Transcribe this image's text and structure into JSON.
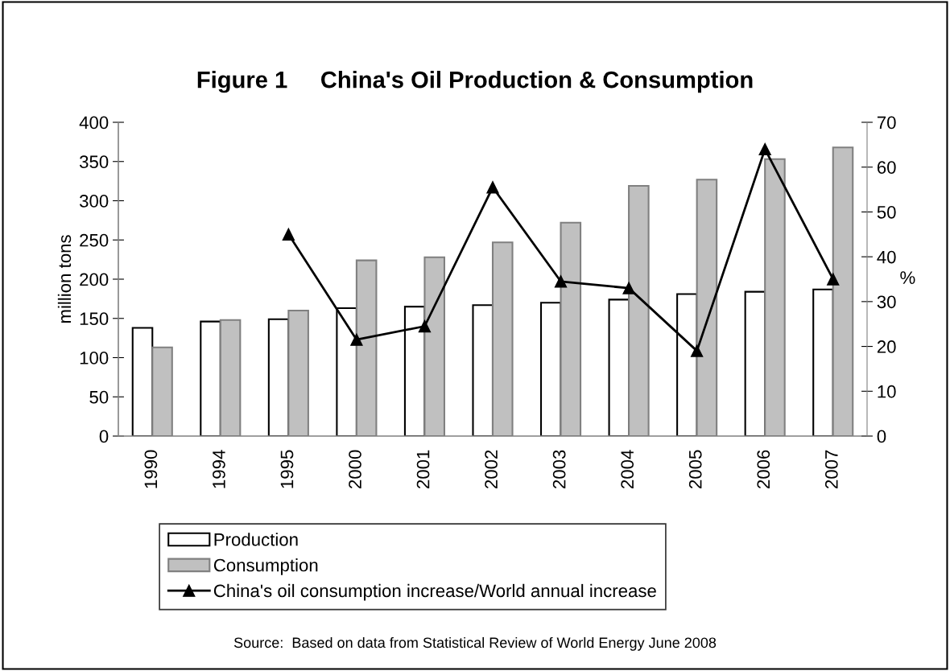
{
  "chart_data": {
    "type": "bar",
    "title": "Figure 1     China's Oil Production & Consumption",
    "ylabel": "million tons",
    "y2label": "%",
    "categories": [
      "1990",
      "1994",
      "1995",
      "2000",
      "2001",
      "2002",
      "2003",
      "2004",
      "2005",
      "2006",
      "2007"
    ],
    "series": [
      {
        "name": "Production",
        "color": "#ffffff",
        "values": [
          138,
          146,
          149,
          163,
          165,
          167,
          170,
          174,
          181,
          184,
          187
        ]
      },
      {
        "name": "Consumption",
        "color": "#c0c0c0",
        "values": [
          113,
          148,
          160,
          224,
          228,
          247,
          272,
          319,
          327,
          353,
          368
        ]
      },
      {
        "name": "China's oil consumption increase/World annual increase",
        "type": "line",
        "axis": "y2",
        "color": "#000000",
        "marker": "triangle",
        "values": [
          null,
          null,
          45,
          21.5,
          24.5,
          55.5,
          34.5,
          33,
          19,
          64,
          35
        ]
      }
    ],
    "ylim": [
      0,
      400
    ],
    "yticks": [
      0,
      50,
      100,
      150,
      200,
      250,
      300,
      350,
      400
    ],
    "y2lim": [
      0,
      70
    ],
    "y2ticks": [
      0,
      10,
      20,
      30,
      40,
      50,
      60,
      70
    ],
    "grid": false,
    "legend": "bottom",
    "annotations": [
      "Source:  Based on data from Statistical Review of World Energy June 2008"
    ]
  }
}
